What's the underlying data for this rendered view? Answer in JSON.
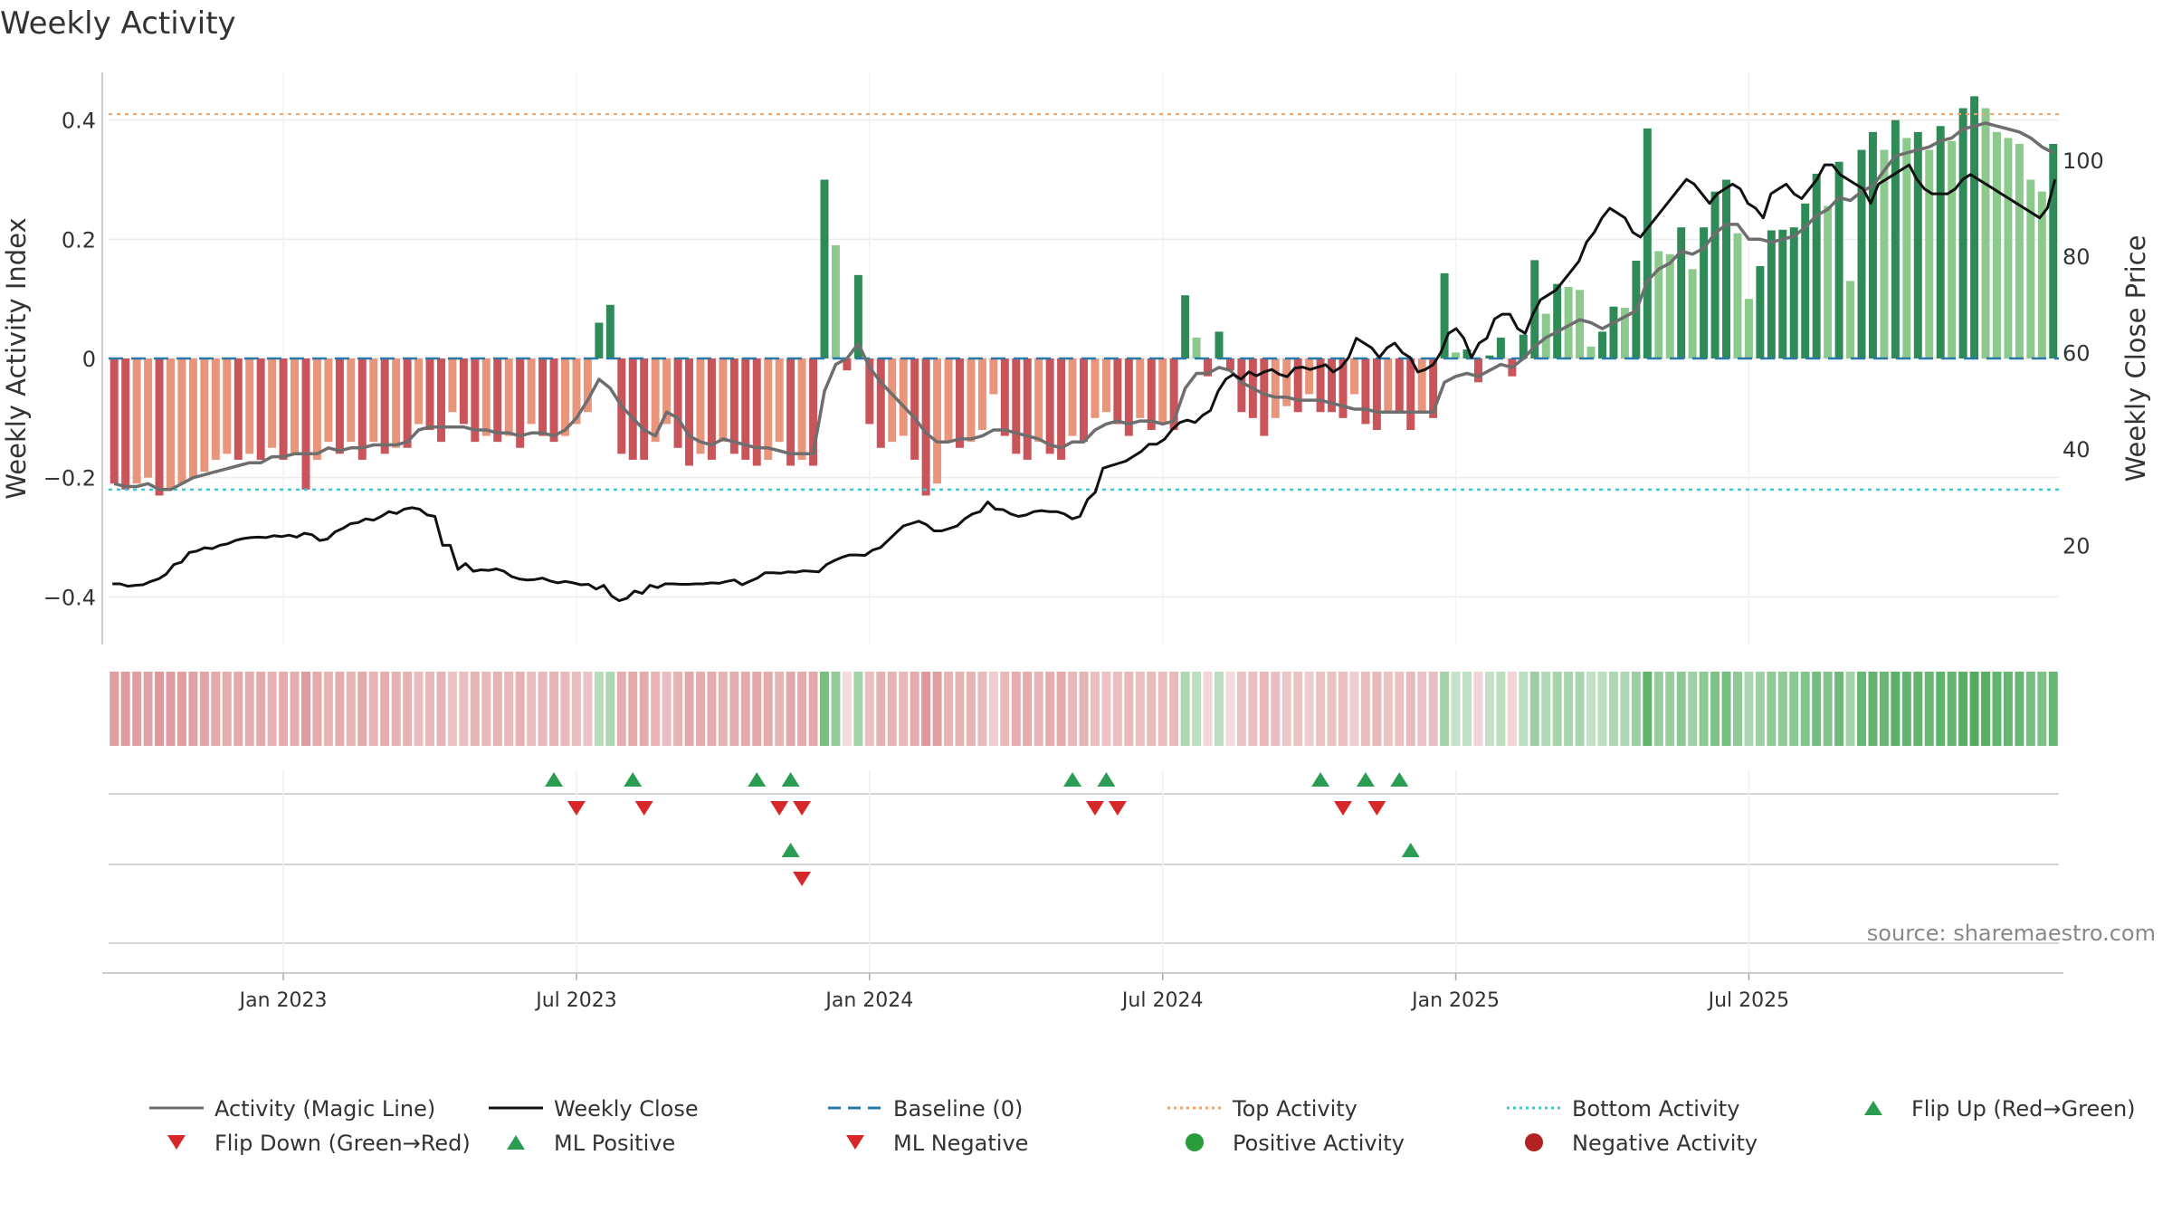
{
  "chart_data": {
    "type": "bar",
    "title": "Weekly Activity",
    "ylabel_left": "Weekly Activity Index",
    "ylabel_right": "Weekly Close Price",
    "source": "source: sharemaestro.com",
    "y_left_ticks": [
      {
        "v": 0.4,
        "label": "0.4"
      },
      {
        "v": 0.2,
        "label": "0.2"
      },
      {
        "v": 0,
        "label": "0"
      },
      {
        "v": -0.2,
        "label": "−0.2"
      },
      {
        "v": -0.4,
        "label": "−0.4"
      }
    ],
    "y_left_range": [
      -0.48,
      0.48
    ],
    "y_right_ticks": [
      {
        "v": 100,
        "label": "100"
      },
      {
        "v": 80,
        "label": "80"
      },
      {
        "v": 60,
        "label": "60"
      },
      {
        "v": 40,
        "label": "40"
      },
      {
        "v": 20,
        "label": "20"
      }
    ],
    "y_right_range": [
      -0.6,
      118.2
    ],
    "x_ticks": [
      {
        "w": 15,
        "label": "Jan 2023"
      },
      {
        "w": 41,
        "label": "Jul 2023"
      },
      {
        "w": 67,
        "label": "Jan 2024"
      },
      {
        "w": 93,
        "label": "Jul 2024"
      },
      {
        "w": 119,
        "label": "Jan 2025"
      },
      {
        "w": 145,
        "label": "Jul 2025"
      }
    ],
    "top_activity": 0.41,
    "bottom_activity": -0.22,
    "activity": [
      -0.21,
      -0.22,
      -0.21,
      -0.2,
      -0.23,
      -0.22,
      -0.21,
      -0.2,
      -0.19,
      -0.17,
      -0.16,
      -0.17,
      -0.16,
      -0.17,
      -0.15,
      -0.17,
      -0.16,
      -0.22,
      -0.17,
      -0.14,
      -0.16,
      -0.14,
      -0.17,
      -0.14,
      -0.16,
      -0.15,
      -0.15,
      -0.11,
      -0.12,
      -0.14,
      -0.09,
      -0.11,
      -0.14,
      -0.13,
      -0.14,
      -0.13,
      -0.15,
      -0.11,
      -0.13,
      -0.14,
      -0.13,
      -0.11,
      -0.09,
      0.06,
      0.09,
      -0.16,
      -0.17,
      -0.17,
      -0.14,
      -0.11,
      -0.15,
      -0.18,
      -0.16,
      -0.17,
      -0.14,
      -0.16,
      -0.17,
      -0.18,
      -0.17,
      -0.14,
      -0.18,
      -0.17,
      -0.18,
      0.3,
      0.19,
      -0.02,
      0.14,
      -0.11,
      -0.15,
      -0.14,
      -0.13,
      -0.17,
      -0.23,
      -0.21,
      -0.14,
      -0.15,
      -0.14,
      -0.12,
      -0.06,
      -0.13,
      -0.16,
      -0.17,
      -0.14,
      -0.16,
      -0.17,
      -0.13,
      -0.14,
      -0.1,
      -0.09,
      -0.11,
      -0.13,
      -0.1,
      -0.12,
      -0.11,
      -0.12,
      0.106,
      0.035,
      -0.03,
      0.045,
      -0.02,
      -0.09,
      -0.1,
      -0.13,
      -0.1,
      -0.08,
      -0.09,
      -0.06,
      -0.09,
      -0.09,
      -0.1,
      -0.06,
      -0.11,
      -0.12,
      -0.09,
      -0.09,
      -0.12,
      -0.09,
      -0.1,
      0.143,
      0.01,
      0.015,
      -0.04,
      0.005,
      0.035,
      -0.03,
      0.04,
      0.165,
      0.075,
      0.125,
      0.12,
      0.115,
      0.02,
      0.045,
      0.087,
      0.085,
      0.164,
      0.386,
      0.18,
      0.175,
      0.22,
      0.15,
      0.22,
      0.28,
      0.3,
      0.21,
      0.1,
      0.155,
      0.215,
      0.216,
      0.22,
      0.26,
      0.31,
      0.256,
      0.33,
      0.13,
      0.35,
      0.38,
      0.35,
      0.4,
      0.37,
      0.38,
      0.35,
      0.39,
      0.365,
      0.42,
      0.44,
      0.42,
      0.38,
      0.37,
      0.36,
      0.3,
      0.28,
      0.36
    ],
    "magic_line": [
      -0.21,
      -0.215,
      -0.215,
      -0.21,
      -0.22,
      -0.22,
      -0.21,
      -0.2,
      -0.195,
      -0.19,
      -0.185,
      -0.18,
      -0.175,
      -0.175,
      -0.165,
      -0.165,
      -0.16,
      -0.16,
      -0.16,
      -0.15,
      -0.155,
      -0.15,
      -0.15,
      -0.145,
      -0.145,
      -0.145,
      -0.14,
      -0.12,
      -0.115,
      -0.115,
      -0.115,
      -0.115,
      -0.12,
      -0.12,
      -0.125,
      -0.125,
      -0.13,
      -0.125,
      -0.125,
      -0.13,
      -0.12,
      -0.1,
      -0.07,
      -0.035,
      -0.05,
      -0.08,
      -0.1,
      -0.12,
      -0.13,
      -0.09,
      -0.1,
      -0.13,
      -0.14,
      -0.145,
      -0.135,
      -0.14,
      -0.145,
      -0.15,
      -0.15,
      -0.155,
      -0.16,
      -0.16,
      -0.16,
      -0.055,
      -0.01,
      0.0,
      0.025,
      -0.015,
      -0.04,
      -0.06,
      -0.08,
      -0.1,
      -0.125,
      -0.14,
      -0.14,
      -0.135,
      -0.135,
      -0.13,
      -0.12,
      -0.12,
      -0.125,
      -0.13,
      -0.135,
      -0.145,
      -0.15,
      -0.14,
      -0.14,
      -0.12,
      -0.11,
      -0.105,
      -0.11,
      -0.105,
      -0.105,
      -0.11,
      -0.105,
      -0.05,
      -0.025,
      -0.025,
      -0.015,
      -0.02,
      -0.04,
      -0.05,
      -0.06,
      -0.065,
      -0.065,
      -0.07,
      -0.07,
      -0.07,
      -0.075,
      -0.08,
      -0.085,
      -0.085,
      -0.09,
      -0.09,
      -0.09,
      -0.09,
      -0.09,
      -0.09,
      -0.04,
      -0.03,
      -0.025,
      -0.03,
      -0.02,
      -0.01,
      -0.015,
      0.0,
      0.02,
      0.035,
      0.045,
      0.055,
      0.065,
      0.06,
      0.05,
      0.06,
      0.07,
      0.08,
      0.13,
      0.15,
      0.16,
      0.18,
      0.175,
      0.185,
      0.21,
      0.225,
      0.225,
      0.2,
      0.2,
      0.195,
      0.2,
      0.205,
      0.22,
      0.24,
      0.25,
      0.27,
      0.265,
      0.28,
      0.29,
      0.315,
      0.34,
      0.345,
      0.35,
      0.355,
      0.365,
      0.37,
      0.385,
      0.39,
      0.395,
      0.39,
      0.385,
      0.38,
      0.37,
      0.355,
      0.345
    ],
    "close": [
      12,
      12,
      11.5,
      11.7,
      11.8,
      12.5,
      13,
      14,
      16,
      16.5,
      18.5,
      18.8,
      19.5,
      19.3,
      20,
      20.3,
      21,
      21.4,
      21.6,
      21.7,
      21.6,
      22,
      21.8,
      22.1,
      21.7,
      22.5,
      22.2,
      21,
      21.3,
      22.8,
      23.5,
      24.5,
      24.7,
      25.5,
      25.2,
      26,
      27,
      26.6,
      27.5,
      27.8,
      27.5,
      26.3,
      26,
      20,
      20,
      15,
      16.2,
      14.6,
      14.9,
      14.8,
      15.1,
      14.6,
      13.5,
      13,
      12.8,
      12.9,
      13.2,
      12.6,
      12.2,
      12.5,
      12.2,
      11.8,
      11.9,
      10.9,
      11.7,
      9.5,
      8.5,
      9,
      10.5,
      10,
      11.7,
      11.2,
      12,
      12,
      11.9,
      11.9,
      12,
      12,
      12.2,
      12.1,
      12.5,
      12.8,
      11.8,
      12.5,
      13.2,
      14.3,
      14.3,
      14.2,
      14.5,
      14.4,
      14.7,
      14.6,
      14.5,
      16,
      16.8,
      17.5,
      18,
      18,
      17.9,
      19,
      19.5,
      21,
      22.5,
      24,
      24.5,
      25,
      24.3,
      23,
      23,
      23.5,
      24,
      25.5,
      26.5,
      27,
      29,
      27.5,
      27.4,
      26.5,
      26,
      26.3,
      27,
      27.2,
      27,
      27,
      26.5,
      25.5,
      26,
      29.5,
      31,
      36,
      36.5,
      37,
      37.5,
      38.5,
      39.5,
      41,
      41,
      42,
      44,
      45.5,
      46,
      45.5,
      47,
      48,
      52,
      54.5,
      55.5,
      54.5,
      56,
      55.2,
      56,
      56.5,
      55.5,
      55,
      56.8,
      57,
      56.5,
      57,
      57.5,
      56,
      57,
      59,
      63,
      62,
      61,
      59,
      61,
      62,
      60,
      59,
      56,
      56.5,
      57.5,
      60,
      64,
      65,
      63,
      59,
      62,
      63,
      67,
      68,
      68,
      65,
      64,
      68,
      71,
      72,
      73,
      75,
      77,
      79,
      83,
      85,
      88,
      90,
      89,
      88,
      85,
      84,
      86,
      88,
      90,
      92,
      94,
      96,
      95,
      93,
      91,
      93,
      94,
      95,
      94,
      91,
      90,
      88,
      93,
      94,
      95,
      93,
      92,
      94,
      96,
      99,
      99,
      97,
      96,
      95,
      94,
      91,
      95,
      96,
      97,
      98,
      99,
      96,
      94,
      93,
      93,
      93,
      94,
      96,
      97,
      96,
      95,
      94,
      93,
      92,
      91,
      90,
      89,
      88,
      90,
      96
    ],
    "flip_up": [
      39,
      46,
      57,
      60,
      85,
      88,
      107,
      111,
      114
    ],
    "flip_down": [
      41,
      47,
      59,
      61,
      87,
      89,
      109,
      112
    ],
    "ml_positive": [
      60,
      115
    ],
    "ml_negative": [
      61
    ],
    "legend": [
      {
        "type": "line",
        "color": "#6e6e6e",
        "dash": "",
        "label": "Activity (Magic Line)"
      },
      {
        "type": "line",
        "color": "#111111",
        "dash": "",
        "label": "Weekly Close"
      },
      {
        "type": "line",
        "color": "#2a78a8",
        "dash": "14,8",
        "label": "Baseline (0)"
      },
      {
        "type": "line",
        "color": "#f4a261",
        "dash": "3,4",
        "label": "Top Activity"
      },
      {
        "type": "line",
        "color": "#3cc6d6",
        "dash": "3,4",
        "label": "Bottom Activity"
      },
      {
        "type": "tri_up",
        "color": "#2a9d52",
        "label": "Flip Up (Red→Green)"
      },
      {
        "type": "tri_down",
        "color": "#d62828",
        "label": "Flip Down (Green→Red)"
      },
      {
        "type": "tri_up",
        "color": "#2a9d52",
        "label": "ML Positive"
      },
      {
        "type": "tri_down",
        "color": "#d62828",
        "label": "ML Negative"
      },
      {
        "type": "dot",
        "color": "#2a9d3a",
        "label": "Positive Activity"
      },
      {
        "type": "dot",
        "color": "#b22222",
        "label": "Negative Activity"
      }
    ],
    "colors": {
      "pos_dark": "#2e8b57",
      "pos_light": "#8cc98c",
      "neg_dark": "#c9545a",
      "neg_light": "#e8957c",
      "baseline": "#2a78a8",
      "top": "#f4a261",
      "bottom": "#3cc6d6",
      "magic": "#6e6e6e",
      "close": "#111111"
    }
  }
}
